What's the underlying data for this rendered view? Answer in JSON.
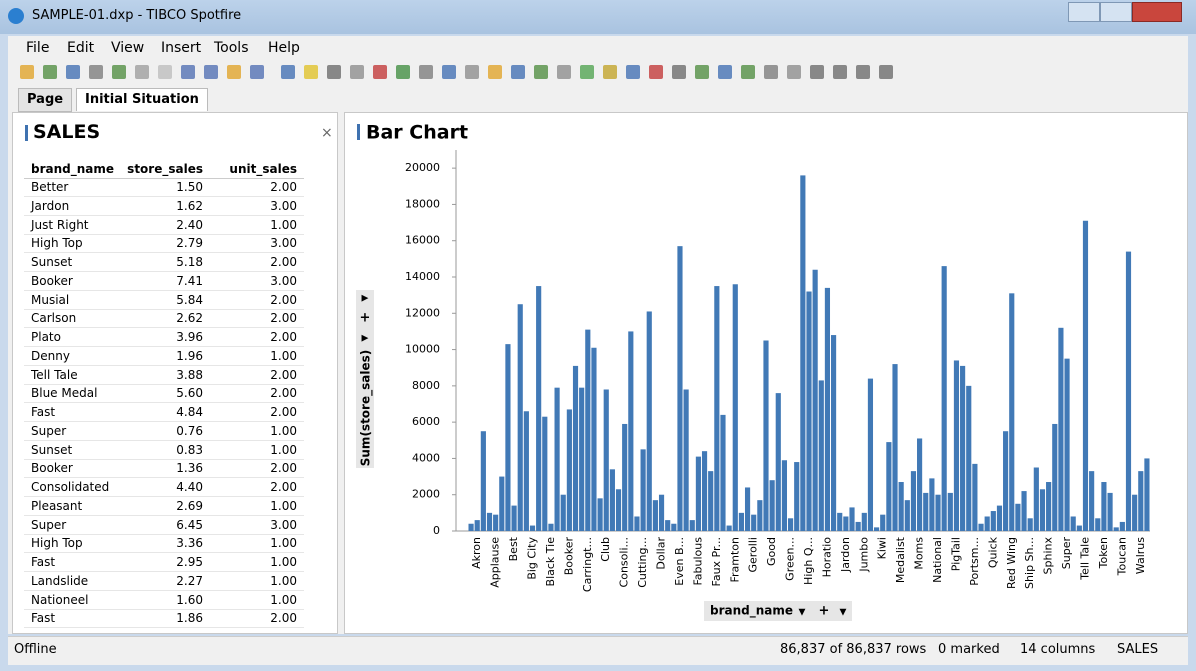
{
  "window": {
    "title": "SAMPLE-01.dxp - TIBCO Spotfire"
  },
  "menu": [
    "File",
    "Edit",
    "View",
    "Insert",
    "Tools",
    "Help"
  ],
  "tabs": [
    "Page",
    "Initial Situation"
  ],
  "table_panel": {
    "title": "SALES",
    "columns": [
      "brand_name",
      "store_sales",
      "unit_sales"
    ],
    "rows": [
      [
        "Better",
        "1.50",
        "2.00"
      ],
      [
        "Jardon",
        "1.62",
        "3.00"
      ],
      [
        "Just Right",
        "2.40",
        "1.00"
      ],
      [
        "High Top",
        "2.79",
        "3.00"
      ],
      [
        "Sunset",
        "5.18",
        "2.00"
      ],
      [
        "Booker",
        "7.41",
        "3.00"
      ],
      [
        "Musial",
        "5.84",
        "2.00"
      ],
      [
        "Carlson",
        "2.62",
        "2.00"
      ],
      [
        "Plato",
        "3.96",
        "2.00"
      ],
      [
        "Denny",
        "1.96",
        "1.00"
      ],
      [
        "Tell Tale",
        "3.88",
        "2.00"
      ],
      [
        "Blue Medal",
        "5.60",
        "2.00"
      ],
      [
        "Fast",
        "4.84",
        "2.00"
      ],
      [
        "Super",
        "0.76",
        "1.00"
      ],
      [
        "Sunset",
        "0.83",
        "1.00"
      ],
      [
        "Booker",
        "1.36",
        "2.00"
      ],
      [
        "Consolidated",
        "4.40",
        "2.00"
      ],
      [
        "Pleasant",
        "2.69",
        "1.00"
      ],
      [
        "Super",
        "6.45",
        "3.00"
      ],
      [
        "High Top",
        "3.36",
        "1.00"
      ],
      [
        "Fast",
        "2.95",
        "1.00"
      ],
      [
        "Landslide",
        "2.27",
        "1.00"
      ],
      [
        "Nationeel",
        "1.60",
        "1.00"
      ],
      [
        "Fast",
        "1.86",
        "2.00"
      ]
    ]
  },
  "chart_data": {
    "type": "bar",
    "title": "Bar Chart",
    "x_label": "brand_name",
    "y_label": "Sum(store_sales)",
    "categories": [
      null,
      "Akron",
      null,
      null,
      "Applause",
      null,
      null,
      "Best",
      null,
      null,
      "Big City",
      null,
      null,
      "Black Tie",
      null,
      null,
      "Booker",
      null,
      null,
      "Carringt...",
      null,
      null,
      "Club",
      null,
      null,
      "Consoli...",
      null,
      null,
      "Cutting...",
      null,
      null,
      "Dollar",
      null,
      null,
      "Even B...",
      null,
      null,
      "Fabulous",
      null,
      null,
      "Faux Pr...",
      null,
      null,
      "Framton",
      null,
      null,
      "Gerolli",
      null,
      null,
      "Good",
      null,
      null,
      "Green...",
      null,
      null,
      "High Q...",
      null,
      null,
      "Horatio",
      null,
      null,
      "Jardon",
      null,
      null,
      "Jumbo",
      null,
      null,
      "Kiwi",
      null,
      null,
      "Medalist",
      null,
      null,
      "Moms",
      null,
      null,
      "National",
      null,
      null,
      "PigTail",
      null,
      null,
      "Portsm...",
      null,
      null,
      "Quick",
      null,
      null,
      "Red Wing",
      null,
      null,
      "Ship Sh...",
      null,
      null,
      "Sphinx",
      null,
      null,
      "Super",
      null,
      null,
      "Tell Tale",
      null,
      null,
      "Token",
      null,
      null,
      "Toucan",
      null,
      null,
      "Walrus",
      null
    ],
    "values": [
      400,
      600,
      5500,
      1000,
      900,
      3000,
      10300,
      1400,
      12500,
      6600,
      300,
      13500,
      6300,
      400,
      7900,
      2000,
      6700,
      9100,
      7900,
      11100,
      10100,
      1800,
      7800,
      3400,
      2300,
      5900,
      11000,
      800,
      4500,
      12100,
      1700,
      2000,
      600,
      400,
      15700,
      7800,
      600,
      4100,
      4400,
      3300,
      13500,
      6400,
      300,
      13600,
      1000,
      2400,
      900,
      1700,
      10500,
      2800,
      7600,
      3900,
      700,
      3800,
      19600,
      13200,
      14400,
      8300,
      13400,
      10800,
      1000,
      800,
      1300,
      500,
      1000,
      8400,
      200,
      900,
      4900,
      9200,
      2700,
      1700,
      3300,
      5100,
      2100,
      2900,
      2000,
      14600,
      2100,
      9400,
      9100,
      8000,
      3700,
      400,
      800,
      1100,
      1400,
      5500,
      13100,
      1500,
      2200,
      700,
      3500,
      2300,
      2700,
      5900,
      11200,
      9500,
      800,
      300,
      17100,
      3300,
      700,
      2700,
      2100,
      200,
      500,
      15400,
      2000,
      3300,
      4000
    ],
    "color": "#4179b6",
    "ylim": [
      0,
      21000
    ],
    "yticks": [
      0,
      2000,
      4000,
      6000,
      8000,
      10000,
      12000,
      14000,
      16000,
      18000,
      20000
    ],
    "grid": false
  },
  "status": [
    "Offline",
    "86,837 of 86,837 rows",
    "0 marked",
    "14 columns",
    "SALES"
  ]
}
